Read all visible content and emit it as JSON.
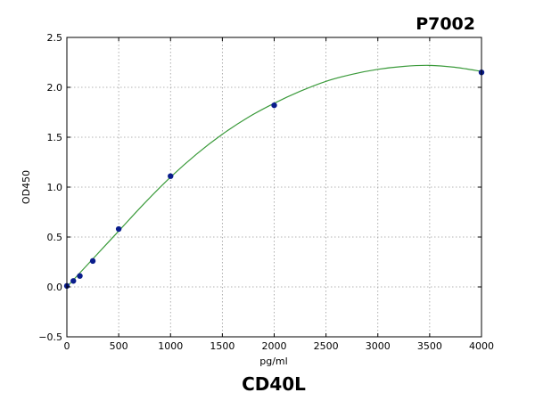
{
  "chart_data": {
    "type": "scatter",
    "title": "P7002",
    "subtitle": "CD40L",
    "xlabel": "pg/ml",
    "ylabel": "OD450",
    "xlim": [
      0,
      4000
    ],
    "ylim": [
      -0.5,
      2.5
    ],
    "xticks": [
      0,
      500,
      1000,
      1500,
      2000,
      2500,
      3000,
      3500,
      4000
    ],
    "yticks": [
      -0.5,
      0.0,
      0.5,
      1.0,
      1.5,
      2.0,
      2.5
    ],
    "xtick_labels": [
      "0",
      "500",
      "1000",
      "1500",
      "2000",
      "2500",
      "3000",
      "3500",
      "4000"
    ],
    "ytick_labels": [
      "−0.5",
      "0.0",
      "0.5",
      "1.0",
      "1.5",
      "2.0",
      "2.5"
    ],
    "grid": true,
    "series": [
      {
        "points": [
          {
            "x": 0,
            "y": 0.01
          },
          {
            "x": 62.5,
            "y": 0.06
          },
          {
            "x": 125,
            "y": 0.11
          },
          {
            "x": 250,
            "y": 0.26
          },
          {
            "x": 500,
            "y": 0.58
          },
          {
            "x": 1000,
            "y": 1.11
          },
          {
            "x": 2000,
            "y": 1.82
          },
          {
            "x": 4000,
            "y": 2.15
          }
        ],
        "color": "#0a1d8c"
      }
    ],
    "fit_curve": {
      "color": "#3a9a3a",
      "points": [
        {
          "x": 0,
          "y": 0.0
        },
        {
          "x": 250,
          "y": 0.28
        },
        {
          "x": 500,
          "y": 0.56
        },
        {
          "x": 750,
          "y": 0.84
        },
        {
          "x": 1000,
          "y": 1.1
        },
        {
          "x": 1250,
          "y": 1.33
        },
        {
          "x": 1500,
          "y": 1.53
        },
        {
          "x": 1750,
          "y": 1.7
        },
        {
          "x": 2000,
          "y": 1.84
        },
        {
          "x": 2250,
          "y": 1.96
        },
        {
          "x": 2500,
          "y": 2.06
        },
        {
          "x": 2750,
          "y": 2.13
        },
        {
          "x": 3000,
          "y": 2.18
        },
        {
          "x": 3250,
          "y": 2.21
        },
        {
          "x": 3500,
          "y": 2.22
        },
        {
          "x": 3750,
          "y": 2.2
        },
        {
          "x": 4000,
          "y": 2.16
        }
      ]
    }
  }
}
